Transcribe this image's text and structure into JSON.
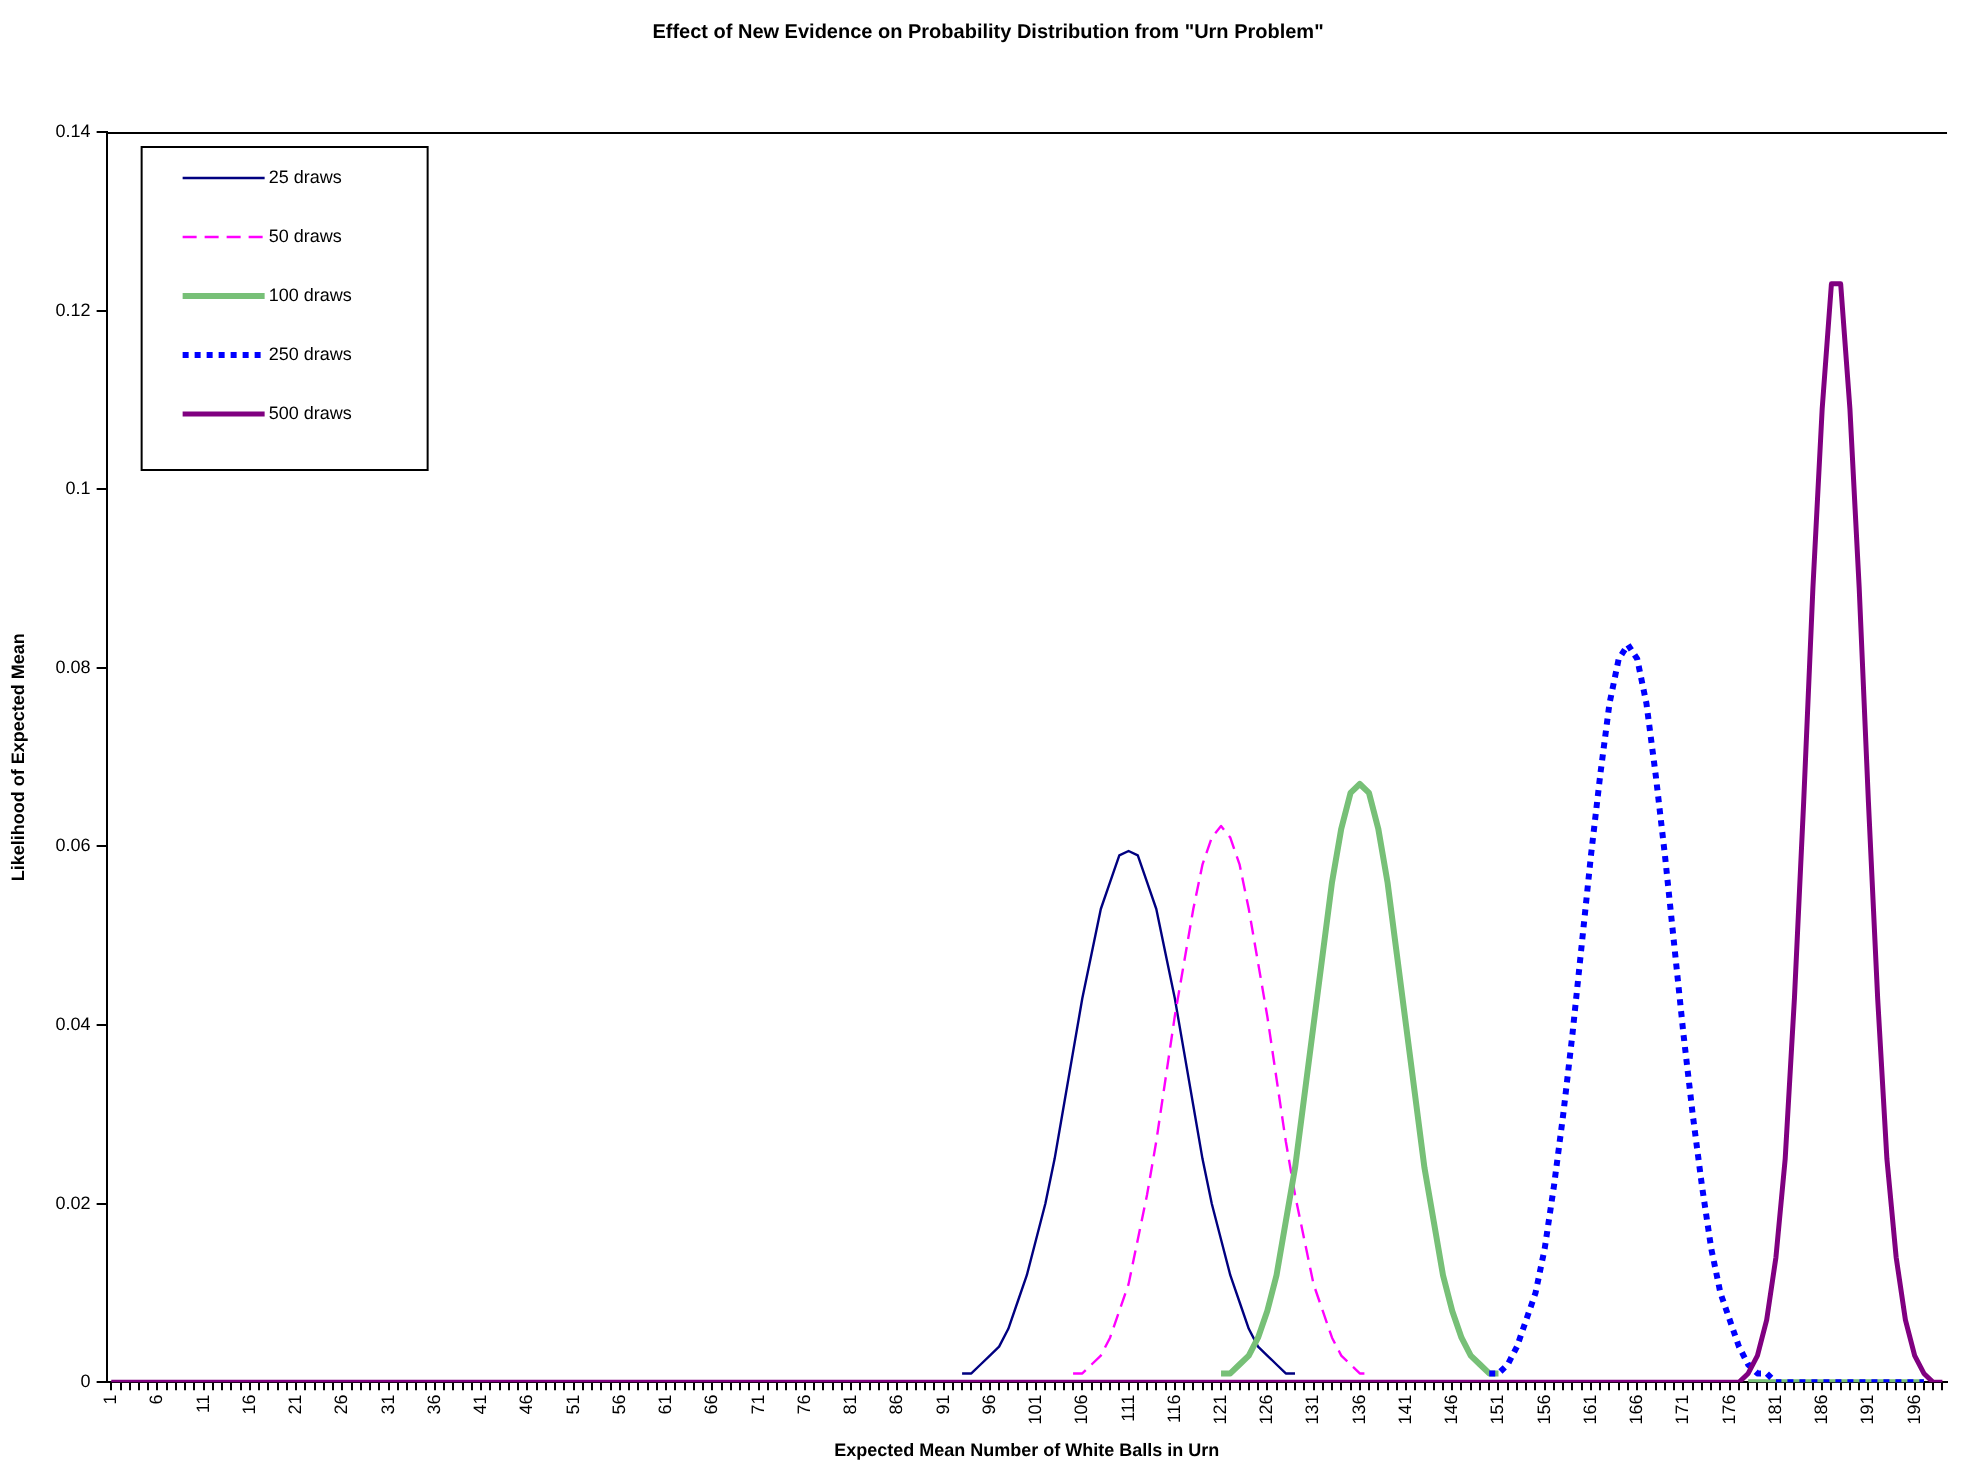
{
  "chart_data": {
    "type": "line",
    "title": "Effect of New Evidence on Probability Distribution from \"Urn Problem\"",
    "xlabel": "Expected Mean Number of White Balls in Urn",
    "ylabel": "Likelihood of Expected Mean",
    "categories": [
      "1",
      null,
      null,
      null,
      null,
      "6",
      null,
      null,
      null,
      null,
      "11",
      null,
      null,
      null,
      null,
      "16",
      null,
      null,
      null,
      null,
      "21",
      null,
      null,
      null,
      null,
      "26",
      null,
      null,
      null,
      null,
      "31",
      null,
      null,
      null,
      null,
      "36",
      null,
      null,
      null,
      null,
      "41",
      null,
      null,
      null,
      null,
      "46",
      null,
      null,
      null,
      null,
      "51",
      null,
      null,
      null,
      null,
      "56",
      null,
      null,
      null,
      null,
      "61",
      null,
      null,
      null,
      null,
      "66",
      null,
      null,
      null,
      null,
      "71",
      null,
      null,
      null,
      null,
      "76",
      null,
      null,
      null,
      null,
      "81",
      null,
      null,
      null,
      null,
      "86",
      null,
      null,
      null,
      null,
      "91",
      null,
      null,
      null,
      null,
      "96",
      null,
      null,
      null,
      null,
      "101",
      null,
      null,
      null,
      null,
      "106",
      null,
      null,
      null,
      null,
      "111",
      null,
      null,
      null,
      null,
      "116",
      null,
      null,
      null,
      null,
      "121",
      null,
      null,
      null,
      null,
      "126",
      null,
      null,
      null,
      null,
      "131",
      null,
      null,
      null,
      null,
      "136",
      null,
      null,
      null,
      null,
      "141",
      null,
      null,
      null,
      null,
      "146",
      null,
      null,
      null,
      null,
      "151",
      null,
      null,
      null,
      null,
      "156",
      null,
      null,
      null,
      null,
      "161",
      null,
      null,
      null,
      null,
      "166",
      null,
      null,
      null,
      null,
      "171",
      null,
      null,
      null,
      null,
      "176",
      null,
      null,
      null,
      null,
      "181",
      null,
      null,
      null,
      null,
      "186",
      null,
      null,
      null,
      null,
      "191",
      null,
      null,
      null,
      null,
      "196",
      null,
      null,
      null
    ],
    "ylim": [
      0,
      0.14
    ],
    "yticks": [
      0,
      0.02,
      0.04,
      0.06,
      0.08,
      0.1,
      0.12,
      0.14
    ],
    "grid": false,
    "legend": "top left",
    "marker": "none",
    "series": [
      {
        "name": "25 draws",
        "color": "#000080",
        "line_style": "solid",
        "values": [
          null,
          null,
          null,
          null,
          null,
          null,
          null,
          null,
          null,
          null,
          null,
          null,
          null,
          null,
          null,
          null,
          null,
          null,
          null,
          null,
          null,
          null,
          null,
          null,
          null,
          null,
          null,
          null,
          null,
          null,
          null,
          null,
          null,
          null,
          null,
          null,
          null,
          null,
          null,
          null,
          null,
          null,
          null,
          null,
          null,
          null,
          null,
          null,
          null,
          null,
          null,
          null,
          null,
          null,
          null,
          null,
          null,
          null,
          null,
          null,
          null,
          null,
          null,
          null,
          null,
          null,
          null,
          null,
          null,
          null,
          null,
          null,
          null,
          null,
          null,
          null,
          null,
          null,
          null,
          null,
          null,
          null,
          null,
          null,
          null,
          null,
          null,
          null,
          null,
          null,
          null,
          null,
          0.001,
          0.001,
          0.002,
          0.003,
          0.004,
          0.006,
          0.009,
          0.012,
          0.016,
          0.02,
          0.025,
          0.031,
          0.037,
          0.043,
          0.048,
          0.053,
          0.056,
          0.059,
          0.0595,
          0.059,
          0.056,
          0.053,
          0.048,
          0.043,
          0.037,
          0.031,
          0.025,
          0.02,
          0.016,
          0.012,
          0.009,
          0.006,
          0.004,
          0.003,
          0.002,
          0.001,
          0.001,
          null,
          null,
          null,
          null,
          null,
          null,
          null,
          null,
          null,
          null,
          null,
          null,
          null,
          null,
          null,
          null,
          null,
          null,
          null,
          null,
          null,
          null,
          null,
          null,
          null,
          null,
          null,
          null,
          null,
          null,
          null,
          null,
          null,
          null,
          null,
          null,
          null,
          null,
          null,
          null,
          null,
          null,
          null,
          null,
          null,
          null,
          null,
          null,
          null,
          null,
          null,
          null,
          null,
          null,
          null,
          null,
          null,
          null,
          null,
          null,
          null,
          null,
          null,
          null,
          null,
          null,
          null,
          null,
          null,
          null
        ]
      },
      {
        "name": "50 draws",
        "color": "#ff00ff",
        "line_style": "dashed",
        "values": [
          null,
          null,
          null,
          null,
          null,
          null,
          null,
          null,
          null,
          null,
          null,
          null,
          null,
          null,
          null,
          null,
          null,
          null,
          null,
          null,
          null,
          null,
          null,
          null,
          null,
          null,
          null,
          null,
          null,
          null,
          null,
          null,
          null,
          null,
          null,
          null,
          null,
          null,
          null,
          null,
          null,
          null,
          null,
          null,
          null,
          null,
          null,
          null,
          null,
          null,
          null,
          null,
          null,
          null,
          null,
          null,
          null,
          null,
          null,
          null,
          null,
          null,
          null,
          null,
          null,
          null,
          null,
          null,
          null,
          null,
          null,
          null,
          null,
          null,
          null,
          null,
          null,
          null,
          null,
          null,
          null,
          null,
          null,
          null,
          null,
          null,
          null,
          null,
          null,
          null,
          null,
          null,
          null,
          null,
          null,
          null,
          null,
          null,
          null,
          null,
          null,
          null,
          null,
          null,
          0.001,
          0.001,
          0.002,
          0.003,
          0.005,
          0.008,
          0.011,
          0.016,
          0.021,
          0.027,
          0.034,
          0.041,
          0.047,
          0.053,
          0.058,
          0.061,
          0.0623,
          0.061,
          0.058,
          0.053,
          0.047,
          0.041,
          0.034,
          0.027,
          0.021,
          0.016,
          0.011,
          0.008,
          0.005,
          0.003,
          0.002,
          0.001,
          0.001,
          null,
          null,
          null,
          null,
          null,
          null,
          null,
          null,
          null,
          null,
          null,
          null,
          null,
          null,
          null,
          null,
          null,
          null,
          null,
          null,
          null,
          null,
          null,
          null,
          null,
          null,
          null,
          null,
          null,
          null,
          null,
          null,
          null,
          null,
          null,
          null,
          null,
          null,
          null,
          null,
          null,
          null,
          null,
          null,
          null,
          null,
          null,
          null,
          null,
          null,
          null,
          null,
          null,
          null,
          null,
          null,
          null,
          null,
          null,
          null,
          null,
          null
        ]
      },
      {
        "name": "100 draws",
        "color": "#77c077",
        "line_style": "solid",
        "values": [
          null,
          null,
          null,
          null,
          null,
          null,
          null,
          null,
          null,
          null,
          null,
          null,
          null,
          null,
          null,
          null,
          null,
          null,
          null,
          null,
          null,
          null,
          null,
          null,
          null,
          null,
          null,
          null,
          null,
          null,
          null,
          null,
          null,
          null,
          null,
          null,
          null,
          null,
          null,
          null,
          null,
          null,
          null,
          null,
          null,
          null,
          null,
          null,
          null,
          null,
          null,
          null,
          null,
          null,
          null,
          null,
          null,
          null,
          null,
          null,
          null,
          null,
          null,
          null,
          null,
          null,
          null,
          null,
          null,
          null,
          null,
          null,
          null,
          null,
          null,
          null,
          null,
          null,
          null,
          null,
          null,
          null,
          null,
          null,
          null,
          null,
          null,
          null,
          null,
          null,
          null,
          null,
          null,
          null,
          null,
          null,
          null,
          null,
          null,
          null,
          null,
          null,
          null,
          null,
          null,
          null,
          null,
          null,
          null,
          null,
          null,
          null,
          null,
          null,
          null,
          null,
          null,
          null,
          null,
          null,
          0.001,
          0.001,
          0.002,
          0.003,
          0.005,
          0.008,
          0.012,
          0.018,
          0.024,
          0.032,
          0.04,
          0.048,
          0.056,
          0.062,
          0.066,
          0.067,
          0.066,
          0.062,
          0.056,
          0.048,
          0.04,
          0.032,
          0.024,
          0.018,
          0.012,
          0.008,
          0.005,
          0.003,
          0.002,
          0.001,
          0.001,
          null,
          null,
          null,
          null,
          null,
          null,
          null,
          null,
          null,
          null,
          null,
          null,
          null,
          null,
          null,
          null,
          null,
          null,
          null,
          null,
          null,
          null,
          null,
          null,
          null,
          null,
          0,
          0,
          0,
          0,
          0,
          0,
          0,
          0,
          0,
          0,
          0,
          0,
          0,
          0,
          0,
          0,
          0,
          0,
          0,
          0,
          null,
          null
        ]
      },
      {
        "name": "250 draws",
        "color": "#0000ff",
        "line_style": "dotted",
        "values": [
          null,
          null,
          null,
          null,
          null,
          null,
          null,
          null,
          null,
          null,
          null,
          null,
          null,
          null,
          null,
          null,
          null,
          null,
          null,
          null,
          null,
          null,
          null,
          null,
          null,
          null,
          null,
          null,
          null,
          null,
          null,
          null,
          null,
          null,
          null,
          null,
          null,
          null,
          null,
          null,
          null,
          null,
          null,
          null,
          null,
          null,
          null,
          null,
          null,
          null,
          null,
          null,
          null,
          null,
          null,
          null,
          null,
          null,
          null,
          null,
          null,
          null,
          null,
          null,
          null,
          null,
          null,
          null,
          null,
          null,
          null,
          null,
          null,
          null,
          null,
          null,
          null,
          null,
          null,
          null,
          null,
          null,
          null,
          null,
          null,
          null,
          null,
          null,
          null,
          null,
          null,
          null,
          null,
          null,
          null,
          null,
          null,
          null,
          null,
          null,
          null,
          null,
          null,
          null,
          null,
          null,
          null,
          null,
          null,
          null,
          null,
          null,
          null,
          null,
          null,
          null,
          null,
          null,
          null,
          null,
          null,
          null,
          null,
          null,
          null,
          null,
          null,
          null,
          null,
          null,
          null,
          null,
          null,
          null,
          null,
          null,
          null,
          null,
          null,
          null,
          null,
          null,
          null,
          null,
          null,
          null,
          null,
          null,
          null,
          0.001,
          0.001,
          0.002,
          0.004,
          0.007,
          0.01,
          0.015,
          0.022,
          0.03,
          0.039,
          0.049,
          0.059,
          0.068,
          0.076,
          0.081,
          0.0826,
          0.081,
          0.076,
          0.068,
          0.059,
          0.049,
          0.039,
          0.03,
          0.022,
          0.015,
          0.01,
          0.007,
          0.004,
          0.002,
          0.001,
          0.001,
          0,
          0,
          0,
          0,
          0,
          0,
          0,
          0,
          0,
          0,
          0,
          0,
          0,
          0,
          0,
          0,
          0,
          null,
          null
        ]
      },
      {
        "name": "500 draws",
        "color": "#800080",
        "line_style": "solid",
        "values": [
          0,
          0,
          0,
          0,
          0,
          0,
          0,
          0,
          0,
          0,
          0,
          0,
          0,
          0,
          0,
          0,
          0,
          0,
          0,
          0,
          0,
          0,
          0,
          0,
          0,
          0,
          0,
          0,
          0,
          0,
          0,
          0,
          0,
          0,
          0,
          0,
          0,
          0,
          0,
          0,
          0,
          0,
          0,
          0,
          0,
          0,
          0,
          0,
          0,
          0,
          0,
          0,
          0,
          0,
          0,
          0,
          0,
          0,
          0,
          0,
          0,
          0,
          0,
          0,
          0,
          0,
          0,
          0,
          0,
          0,
          0,
          0,
          0,
          0,
          0,
          0,
          0,
          0,
          0,
          0,
          0,
          0,
          0,
          0,
          0,
          0,
          0,
          0,
          0,
          0,
          0,
          0,
          0,
          0,
          0,
          0,
          0,
          0,
          0,
          0,
          0,
          0,
          0,
          0,
          0,
          0,
          0,
          0,
          0,
          0,
          0,
          0,
          0,
          0,
          0,
          0,
          0,
          0,
          0,
          0,
          0,
          0,
          0,
          0,
          0,
          0,
          0,
          0,
          0,
          0,
          0,
          0,
          0,
          0,
          0,
          0,
          0,
          0,
          0,
          0,
          0,
          0,
          0,
          0,
          0,
          0,
          0,
          0,
          0,
          0,
          0,
          0,
          0,
          0,
          0,
          0,
          0,
          0,
          0,
          0,
          0,
          0,
          0,
          0,
          0,
          0,
          0,
          0,
          0,
          0,
          0,
          0,
          0,
          0,
          0,
          0,
          0,
          0.001,
          0.003,
          0.007,
          0.014,
          0.025,
          0.043,
          0.065,
          0.089,
          0.109,
          0.123,
          0.123,
          0.109,
          0.089,
          0.065,
          0.043,
          0.025,
          0.014,
          0.007,
          0.003,
          0.001,
          0,
          0
        ]
      }
    ]
  }
}
